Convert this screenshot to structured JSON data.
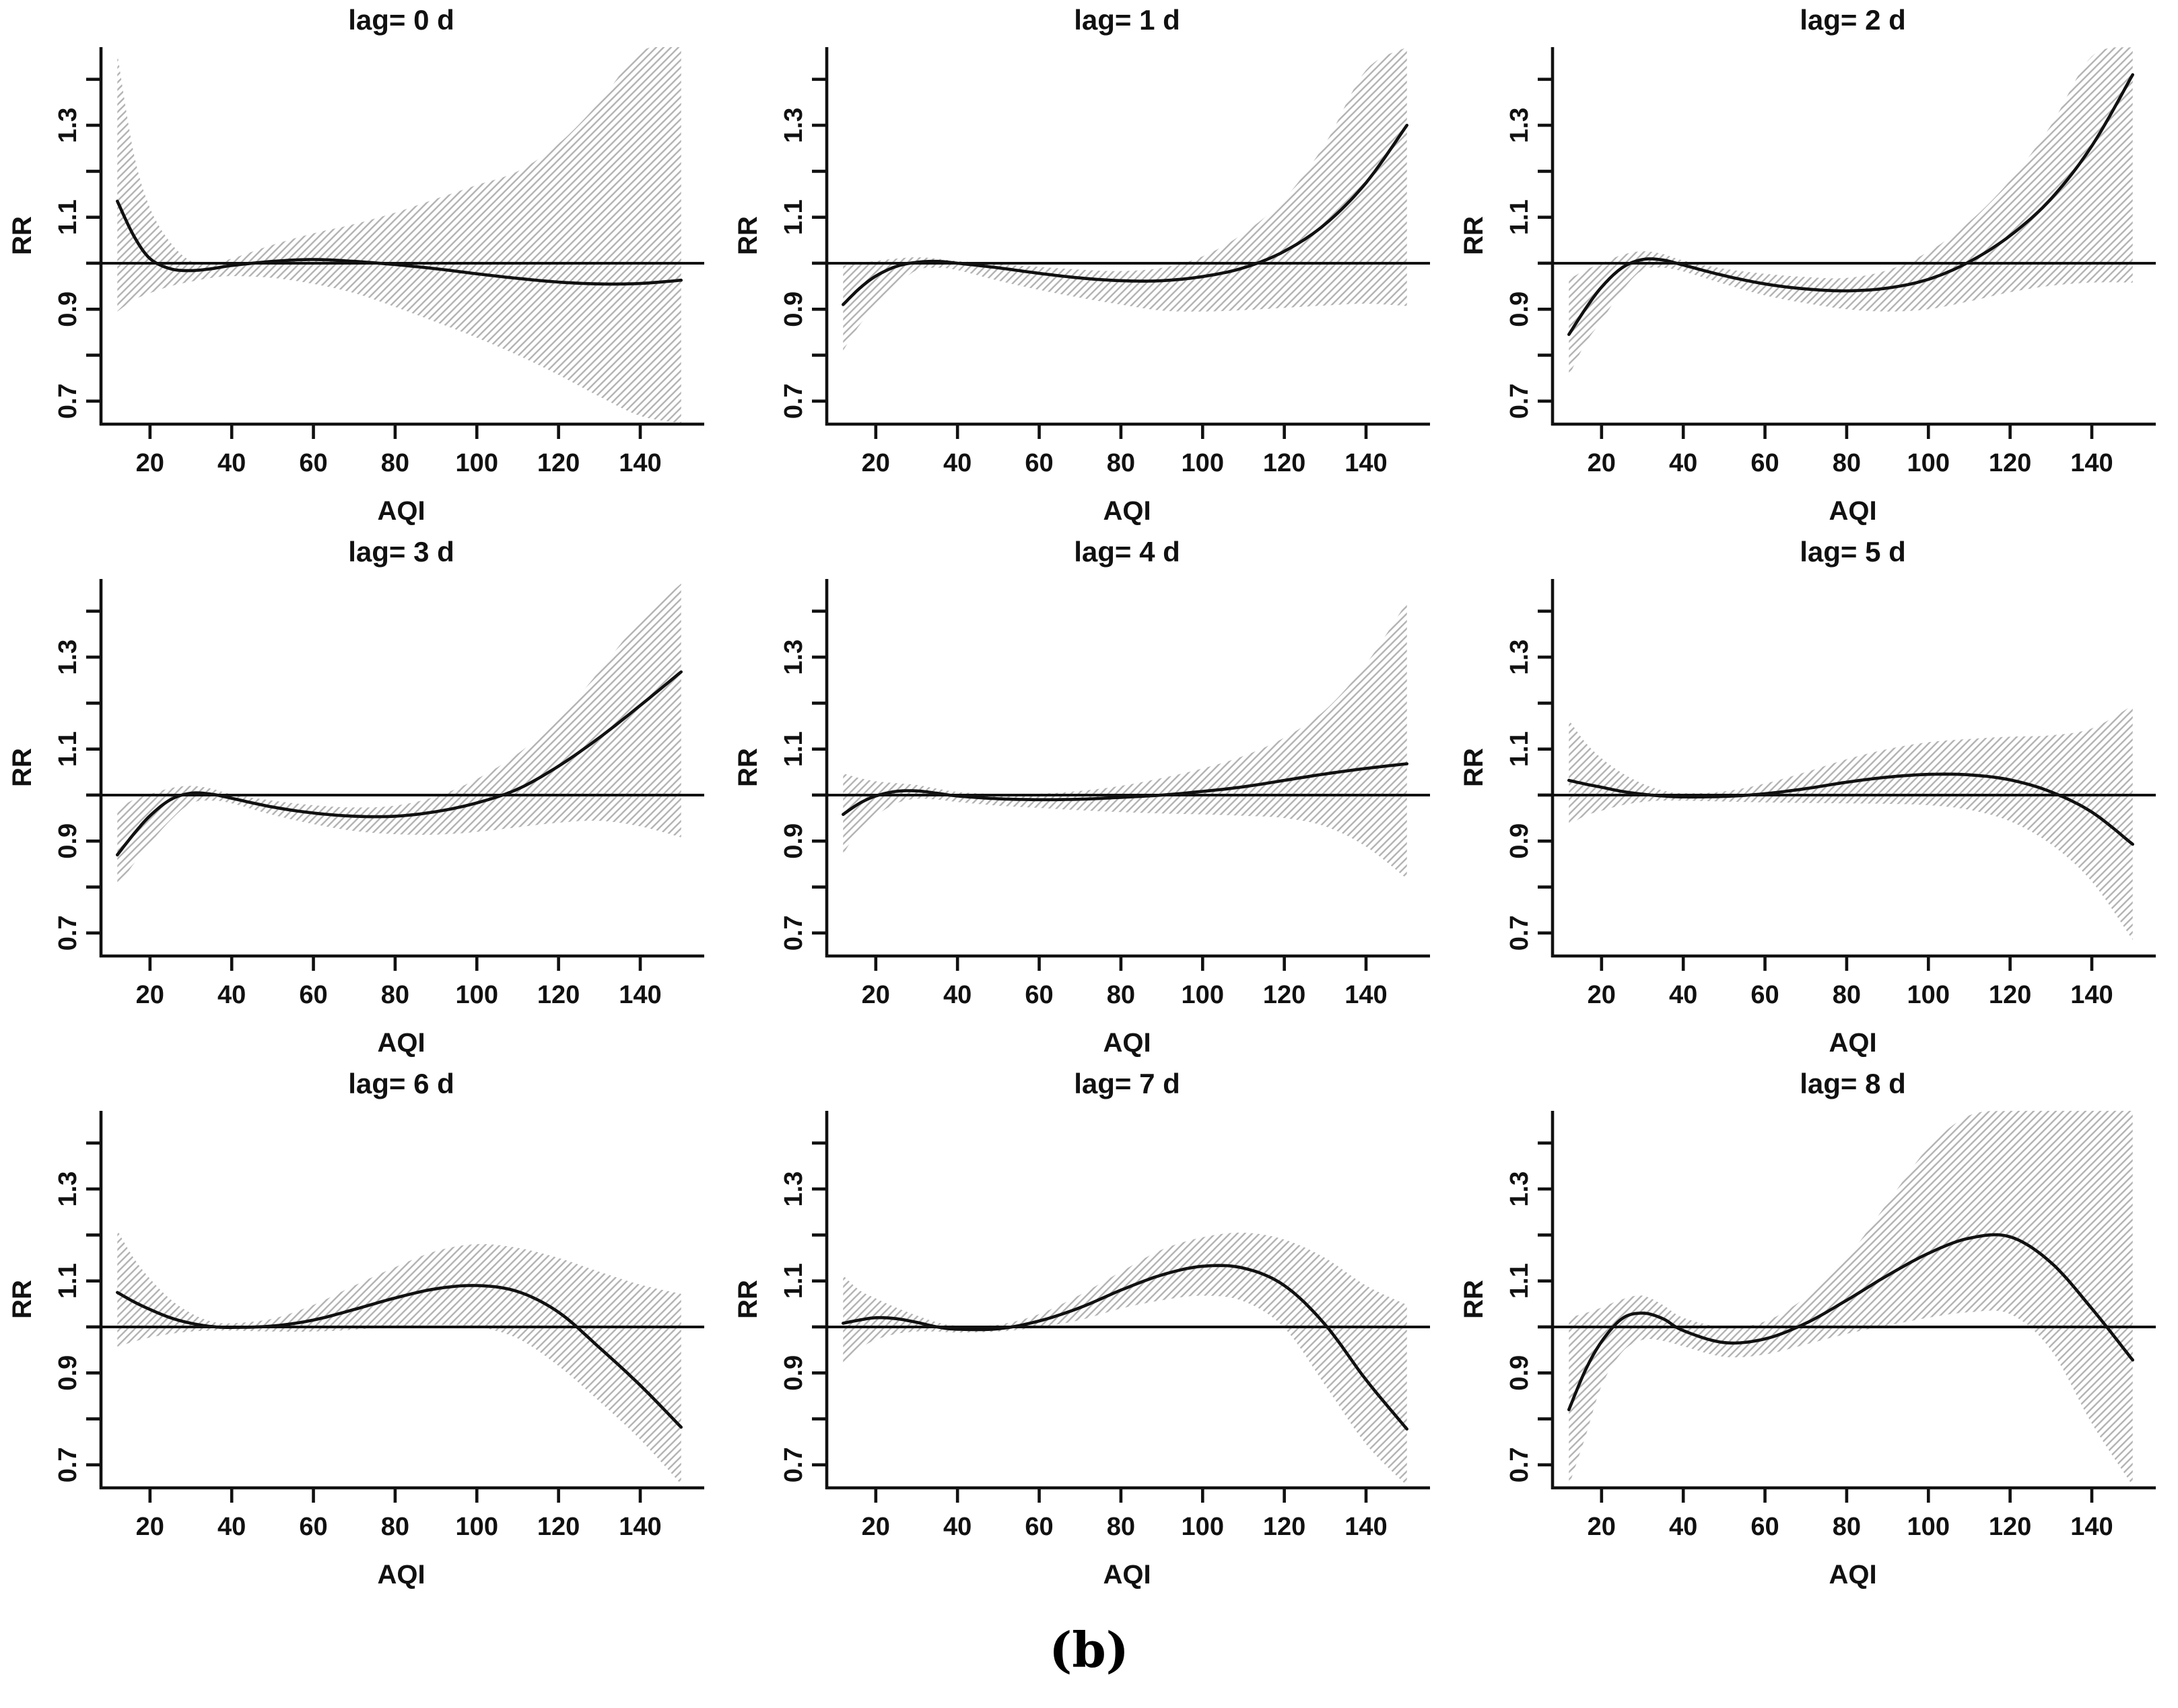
{
  "figure": {
    "caption": "(b)",
    "colors": {
      "curve": "#111111",
      "hatch": "#b4b4b4",
      "axis": "#111111",
      "text": "#111111"
    }
  },
  "axes_common": {
    "xlabel": "AQI",
    "ylabel": "RR",
    "xlim": [
      8,
      155
    ],
    "ylim": [
      0.65,
      1.47
    ],
    "xticks": [
      20,
      40,
      60,
      80,
      100,
      120,
      140
    ],
    "yticks": [
      0.7,
      0.8,
      0.9,
      1.0,
      1.1,
      1.2,
      1.3,
      1.4
    ],
    "ytick_labeled": [
      0.7,
      0.9,
      1.1,
      1.3
    ],
    "ref_line": 1.0,
    "grid": false,
    "legend": "none"
  },
  "chart_data": [
    {
      "type": "line",
      "title": "lag= 0 d",
      "xlabel": "AQI",
      "ylabel": "RR",
      "x": [
        12,
        16,
        20,
        25,
        30,
        35,
        40,
        50,
        60,
        70,
        80,
        90,
        100,
        110,
        120,
        130,
        140,
        150
      ],
      "series": [
        {
          "name": "fit",
          "values": [
            1.135,
            1.06,
            1.01,
            0.988,
            0.984,
            0.988,
            0.995,
            1.004,
            1.008,
            1.004,
            0.997,
            0.988,
            0.977,
            0.967,
            0.959,
            0.955,
            0.956,
            0.963
          ]
        },
        {
          "name": "ci_upper",
          "values": [
            1.455,
            1.24,
            1.12,
            1.045,
            1.005,
            1.0,
            1.01,
            1.04,
            1.065,
            1.085,
            1.11,
            1.14,
            1.17,
            1.2,
            1.26,
            1.35,
            1.46,
            1.47
          ]
        },
        {
          "name": "ci_lower",
          "values": [
            0.895,
            0.92,
            0.935,
            0.95,
            0.96,
            0.968,
            0.972,
            0.968,
            0.955,
            0.935,
            0.905,
            0.872,
            0.838,
            0.8,
            0.757,
            0.71,
            0.668,
            0.652
          ]
        }
      ]
    },
    {
      "type": "line",
      "title": "lag= 1 d",
      "xlabel": "AQI",
      "ylabel": "RR",
      "x": [
        12,
        16,
        20,
        25,
        30,
        35,
        40,
        50,
        60,
        70,
        80,
        90,
        100,
        110,
        120,
        130,
        140,
        150
      ],
      "series": [
        {
          "name": "fit",
          "values": [
            0.91,
            0.945,
            0.972,
            0.993,
            1.002,
            1.004,
            1.0,
            0.99,
            0.978,
            0.968,
            0.962,
            0.962,
            0.971,
            0.99,
            1.026,
            1.085,
            1.175,
            1.3
          ]
        },
        {
          "name": "ci_upper",
          "values": [
            0.995,
            1.0,
            1.005,
            1.01,
            1.013,
            1.01,
            1.005,
            0.998,
            0.992,
            0.986,
            0.983,
            0.99,
            1.015,
            1.065,
            1.14,
            1.26,
            1.42,
            1.47
          ]
        },
        {
          "name": "ci_lower",
          "values": [
            0.81,
            0.865,
            0.905,
            0.95,
            0.985,
            0.99,
            0.985,
            0.962,
            0.942,
            0.925,
            0.91,
            0.897,
            0.895,
            0.898,
            0.903,
            0.908,
            0.912,
            0.907
          ]
        }
      ]
    },
    {
      "type": "line",
      "title": "lag= 2 d",
      "xlabel": "AQI",
      "ylabel": "RR",
      "x": [
        12,
        16,
        20,
        25,
        30,
        35,
        40,
        50,
        60,
        70,
        80,
        90,
        100,
        110,
        120,
        130,
        140,
        150
      ],
      "series": [
        {
          "name": "fit",
          "values": [
            0.845,
            0.9,
            0.948,
            0.99,
            1.008,
            1.007,
            0.996,
            0.973,
            0.955,
            0.944,
            0.94,
            0.946,
            0.965,
            1.003,
            1.06,
            1.14,
            1.255,
            1.41
          ]
        },
        {
          "name": "ci_upper",
          "values": [
            0.965,
            0.985,
            1.0,
            1.018,
            1.026,
            1.02,
            1.006,
            0.988,
            0.977,
            0.97,
            0.968,
            0.985,
            1.025,
            1.09,
            1.18,
            1.3,
            1.45,
            1.47
          ]
        },
        {
          "name": "ci_lower",
          "values": [
            0.755,
            0.825,
            0.875,
            0.94,
            0.985,
            0.99,
            0.982,
            0.955,
            0.93,
            0.913,
            0.9,
            0.895,
            0.9,
            0.917,
            0.937,
            0.951,
            0.958,
            0.958
          ]
        }
      ]
    },
    {
      "type": "line",
      "title": "lag= 3 d",
      "xlabel": "AQI",
      "ylabel": "RR",
      "x": [
        12,
        16,
        20,
        25,
        30,
        35,
        40,
        50,
        60,
        70,
        80,
        90,
        100,
        110,
        120,
        130,
        140,
        150
      ],
      "series": [
        {
          "name": "fit",
          "values": [
            0.87,
            0.915,
            0.955,
            0.99,
            1.004,
            1.002,
            0.993,
            0.974,
            0.961,
            0.954,
            0.954,
            0.964,
            0.983,
            1.013,
            1.063,
            1.125,
            1.195,
            1.268
          ]
        },
        {
          "name": "ci_upper",
          "values": [
            0.97,
            0.99,
            1.002,
            1.015,
            1.02,
            1.014,
            1.002,
            0.988,
            0.978,
            0.973,
            0.977,
            0.997,
            1.035,
            1.09,
            1.165,
            1.27,
            1.38,
            1.46
          ]
        },
        {
          "name": "ci_lower",
          "values": [
            0.8,
            0.85,
            0.895,
            0.945,
            0.982,
            0.988,
            0.982,
            0.957,
            0.937,
            0.922,
            0.915,
            0.914,
            0.92,
            0.93,
            0.94,
            0.944,
            0.932,
            0.908
          ]
        }
      ]
    },
    {
      "type": "line",
      "title": "lag= 4 d",
      "xlabel": "AQI",
      "ylabel": "RR",
      "x": [
        12,
        16,
        20,
        25,
        30,
        35,
        40,
        50,
        60,
        70,
        80,
        90,
        100,
        110,
        120,
        130,
        140,
        150
      ],
      "series": [
        {
          "name": "fit",
          "values": [
            0.958,
            0.982,
            0.998,
            1.008,
            1.009,
            1.004,
            0.998,
            0.992,
            0.99,
            0.991,
            0.995,
            1.0,
            1.008,
            1.018,
            1.032,
            1.046,
            1.058,
            1.068
          ]
        },
        {
          "name": "ci_upper",
          "values": [
            1.047,
            1.037,
            1.03,
            1.026,
            1.022,
            1.014,
            1.007,
            1.002,
            1.003,
            1.009,
            1.02,
            1.037,
            1.058,
            1.085,
            1.125,
            1.185,
            1.285,
            1.42
          ]
        },
        {
          "name": "ci_lower",
          "values": [
            0.872,
            0.925,
            0.955,
            0.982,
            0.992,
            0.99,
            0.985,
            0.977,
            0.972,
            0.967,
            0.963,
            0.96,
            0.958,
            0.955,
            0.95,
            0.932,
            0.888,
            0.818
          ]
        }
      ]
    },
    {
      "type": "line",
      "title": "lag= 5 d",
      "xlabel": "AQI",
      "ylabel": "RR",
      "x": [
        12,
        16,
        20,
        25,
        30,
        35,
        40,
        50,
        60,
        70,
        80,
        90,
        100,
        110,
        120,
        130,
        140,
        150
      ],
      "series": [
        {
          "name": "fit",
          "values": [
            1.032,
            1.024,
            1.017,
            1.008,
            1.002,
            0.998,
            0.996,
            0.997,
            1.003,
            1.014,
            1.028,
            1.039,
            1.045,
            1.044,
            1.033,
            1.007,
            0.963,
            0.893
          ]
        },
        {
          "name": "ci_upper",
          "values": [
            1.163,
            1.115,
            1.08,
            1.048,
            1.025,
            1.01,
            1.004,
            1.008,
            1.025,
            1.05,
            1.078,
            1.1,
            1.115,
            1.122,
            1.127,
            1.13,
            1.145,
            1.195
          ]
        },
        {
          "name": "ci_lower",
          "values": [
            0.935,
            0.955,
            0.966,
            0.978,
            0.985,
            0.988,
            0.988,
            0.986,
            0.984,
            0.983,
            0.982,
            0.981,
            0.978,
            0.968,
            0.943,
            0.893,
            0.812,
            0.685
          ]
        }
      ]
    },
    {
      "type": "line",
      "title": "lag= 6 d",
      "xlabel": "AQI",
      "ylabel": "RR",
      "x": [
        12,
        16,
        20,
        25,
        30,
        35,
        40,
        50,
        60,
        70,
        80,
        90,
        100,
        110,
        120,
        130,
        140,
        150
      ],
      "series": [
        {
          "name": "fit",
          "values": [
            1.075,
            1.055,
            1.038,
            1.02,
            1.008,
            1.001,
            0.999,
            1.002,
            1.015,
            1.038,
            1.063,
            1.083,
            1.09,
            1.077,
            1.032,
            0.955,
            0.873,
            0.782
          ]
        },
        {
          "name": "ci_upper",
          "values": [
            1.21,
            1.15,
            1.105,
            1.06,
            1.03,
            1.012,
            1.008,
            1.018,
            1.048,
            1.09,
            1.13,
            1.165,
            1.18,
            1.172,
            1.15,
            1.12,
            1.092,
            1.072
          ]
        },
        {
          "name": "ci_lower",
          "values": [
            0.957,
            0.968,
            0.977,
            0.985,
            0.99,
            0.992,
            0.992,
            0.99,
            0.99,
            0.994,
            1.0,
            1.004,
            1.0,
            0.975,
            0.915,
            0.838,
            0.755,
            0.658
          ]
        }
      ]
    },
    {
      "type": "line",
      "title": "lag= 7 d",
      "xlabel": "AQI",
      "ylabel": "RR",
      "x": [
        12,
        16,
        20,
        25,
        30,
        35,
        40,
        50,
        60,
        70,
        80,
        90,
        100,
        110,
        120,
        130,
        140,
        150
      ],
      "series": [
        {
          "name": "fit",
          "values": [
            1.008,
            1.015,
            1.02,
            1.018,
            1.01,
            1.0,
            0.995,
            0.996,
            1.013,
            1.042,
            1.08,
            1.113,
            1.132,
            1.128,
            1.09,
            1.005,
            0.885,
            0.778
          ]
        },
        {
          "name": "ci_upper",
          "values": [
            1.112,
            1.08,
            1.062,
            1.042,
            1.025,
            1.01,
            1.003,
            1.005,
            1.028,
            1.07,
            1.12,
            1.168,
            1.195,
            1.205,
            1.19,
            1.15,
            1.09,
            1.048
          ]
        },
        {
          "name": "ci_lower",
          "values": [
            0.918,
            0.952,
            0.972,
            0.985,
            0.99,
            0.99,
            0.988,
            0.99,
            0.999,
            1.015,
            1.04,
            1.058,
            1.068,
            1.056,
            0.998,
            0.873,
            0.745,
            0.655
          ]
        }
      ]
    },
    {
      "type": "line",
      "title": "lag= 8 d",
      "xlabel": "AQI",
      "ylabel": "RR",
      "x": [
        12,
        16,
        20,
        25,
        30,
        35,
        40,
        50,
        60,
        70,
        80,
        90,
        100,
        110,
        120,
        130,
        140,
        150
      ],
      "series": [
        {
          "name": "fit",
          "values": [
            0.82,
            0.905,
            0.968,
            1.018,
            1.03,
            1.018,
            0.992,
            0.966,
            0.974,
            1.008,
            1.058,
            1.112,
            1.16,
            1.193,
            1.196,
            1.14,
            1.04,
            0.928
          ]
        },
        {
          "name": "ci_upper",
          "values": [
            1.02,
            1.03,
            1.042,
            1.06,
            1.068,
            1.048,
            1.02,
            1.0,
            1.012,
            1.065,
            1.15,
            1.27,
            1.39,
            1.46,
            1.47,
            1.47,
            1.47,
            1.47
          ]
        },
        {
          "name": "ci_lower",
          "values": [
            0.655,
            0.76,
            0.872,
            0.945,
            0.972,
            0.97,
            0.958,
            0.935,
            0.94,
            0.962,
            0.985,
            1.003,
            1.02,
            1.032,
            1.028,
            0.95,
            0.79,
            0.655
          ]
        }
      ]
    }
  ]
}
